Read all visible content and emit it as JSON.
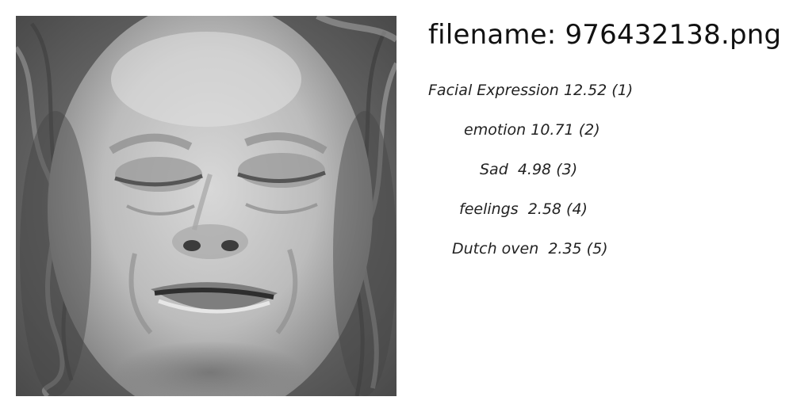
{
  "filename_text": "filename: 976432138.png",
  "labels": [
    {
      "text": "Facial Expression 12.52 (1)"
    },
    {
      "text": "emotion 10.71 (2)"
    },
    {
      "text": "Sad  4.98 (3)"
    },
    {
      "text": "feelings  2.58 (4)"
    },
    {
      "text": "Dutch oven  2.35 (5)"
    }
  ]
}
